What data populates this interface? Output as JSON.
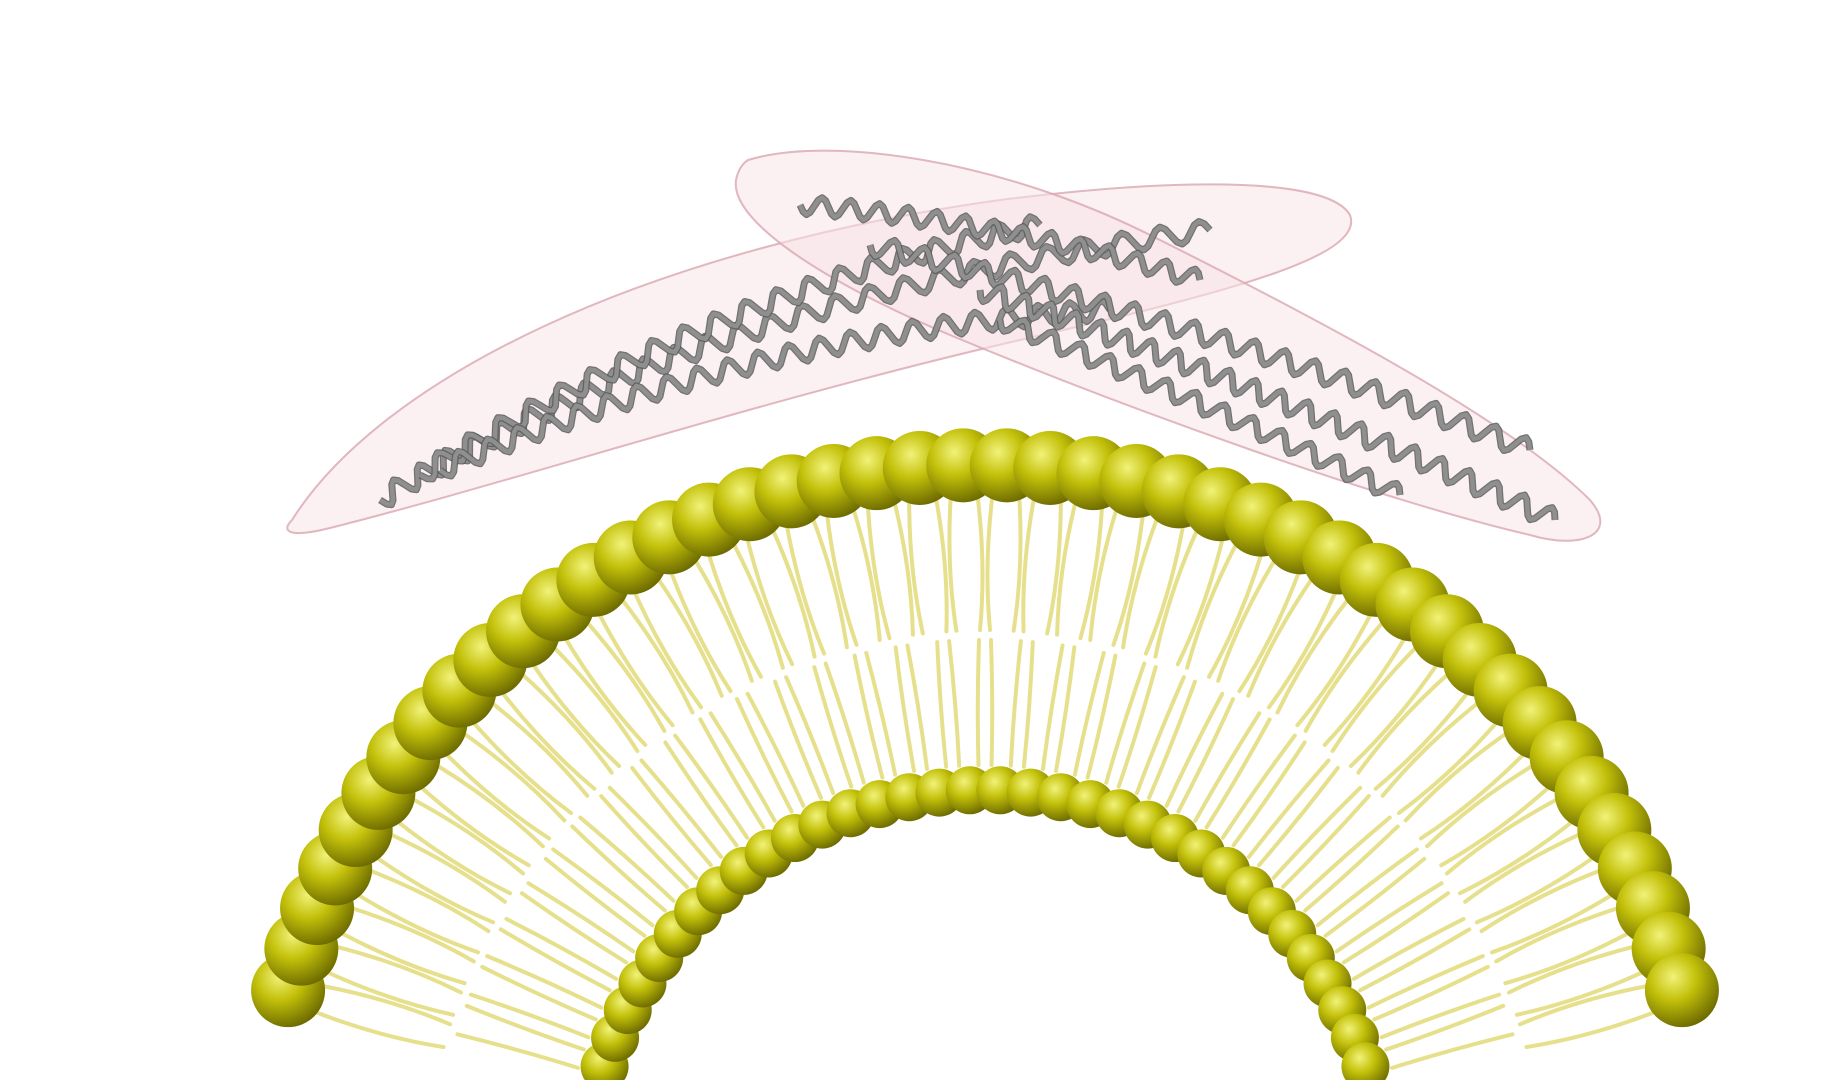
{
  "colors": {
    "background": "#ffffff",
    "lipid_head_light": "#f2f27a",
    "lipid_head_mid": "#c3c10a",
    "lipid_head_dark": "#6e6c00",
    "lipid_tail": "#e6e08c",
    "helix_front": "#8f8f8f",
    "helix_back": "#5a5a5a",
    "envelope_fill": "#f7e3e8",
    "envelope_stroke": "#d9a6b2"
  },
  "scene": {
    "membrane": {
      "outer_head_count": 44,
      "inner_head_count": 34,
      "tails_per_lipid": 2
    },
    "protein_dimer": {
      "monomers": [
        {
          "name": "monomer-left",
          "helices": 3
        },
        {
          "name": "monomer-right",
          "helices": 3
        }
      ]
    }
  }
}
